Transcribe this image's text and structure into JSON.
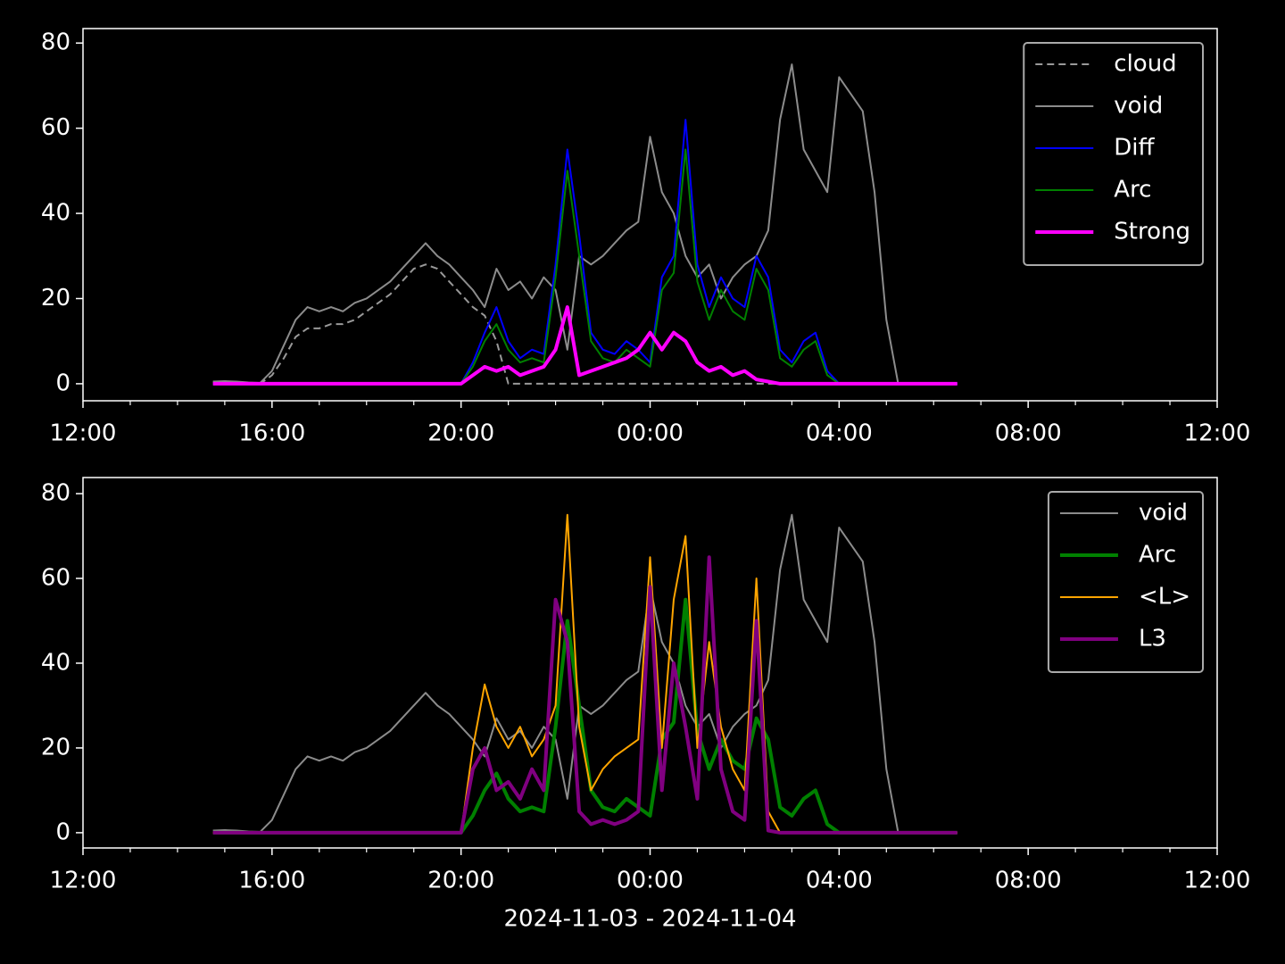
{
  "chart_data": [
    {
      "type": "line",
      "x": [
        2.75,
        3,
        3.25,
        3.5,
        3.75,
        4,
        4.25,
        4.5,
        4.75,
        5,
        5.25,
        5.5,
        5.75,
        6,
        6.25,
        6.5,
        6.75,
        7,
        7.25,
        7.5,
        7.75,
        8,
        8.25,
        8.5,
        8.75,
        9,
        9.25,
        9.5,
        9.75,
        10,
        10.25,
        10.5,
        10.75,
        11,
        11.25,
        11.5,
        11.75,
        12,
        12.25,
        12.5,
        12.75,
        13,
        13.25,
        13.5,
        13.75,
        14,
        14.25,
        14.5,
        14.75,
        15,
        15.25,
        15.5,
        15.75,
        16,
        16.25,
        16.5,
        16.75,
        17,
        17.25,
        17.5,
        17.75,
        18,
        18.25,
        18.5
      ],
      "series": [
        {
          "name": "cloud",
          "color": "#999999",
          "linestyle": "dashed",
          "linewidth": 2,
          "values": [
            0.3,
            0.4,
            0.3,
            0.2,
            0,
            2,
            6,
            11,
            13,
            13,
            14,
            14,
            15,
            17,
            19,
            21,
            24,
            27,
            28,
            27,
            24,
            21,
            18,
            16,
            10,
            0,
            0,
            0,
            0,
            0,
            0,
            0,
            0,
            0,
            0,
            0,
            0,
            0,
            0,
            0,
            0,
            0,
            0,
            0,
            0,
            0,
            0,
            0,
            0,
            0,
            0,
            0,
            0,
            0,
            0,
            0,
            0,
            0,
            0,
            0,
            0,
            0,
            0,
            0
          ]
        },
        {
          "name": "void",
          "color": "#8c8c8c",
          "linestyle": "solid",
          "linewidth": 2,
          "values": [
            0.5,
            0.6,
            0.5,
            0.3,
            0.2,
            3,
            9,
            15,
            18,
            17,
            18,
            17,
            19,
            20,
            22,
            24,
            27,
            30,
            33,
            30,
            28,
            25,
            22,
            18,
            27,
            22,
            24,
            20,
            25,
            22,
            8,
            30,
            28,
            30,
            33,
            36,
            38,
            58,
            45,
            40,
            30,
            25,
            28,
            20,
            25,
            28,
            30,
            36,
            62,
            75,
            55,
            50,
            45,
            72,
            68,
            64,
            45,
            15,
            0,
            0,
            0,
            0,
            0,
            0
          ]
        },
        {
          "name": "Diff",
          "color": "#0000ff",
          "linestyle": "solid",
          "linewidth": 2,
          "values": [
            0,
            0,
            0,
            0,
            0,
            0,
            0,
            0,
            0,
            0,
            0,
            0,
            0,
            0,
            0,
            0,
            0,
            0,
            0,
            0,
            0,
            0,
            5,
            12,
            18,
            10,
            6,
            8,
            7,
            28,
            55,
            35,
            12,
            8,
            7,
            10,
            8,
            5,
            25,
            30,
            62,
            28,
            18,
            25,
            20,
            18,
            30,
            25,
            8,
            5,
            10,
            12,
            3,
            0,
            0,
            0,
            0,
            0,
            0,
            0,
            0,
            0,
            0,
            0
          ]
        },
        {
          "name": "Arc",
          "color": "#008000",
          "linestyle": "solid",
          "linewidth": 2,
          "values": [
            0,
            0,
            0,
            0,
            0,
            0,
            0,
            0,
            0,
            0,
            0,
            0,
            0,
            0,
            0,
            0,
            0,
            0,
            0,
            0,
            0,
            0,
            4,
            10,
            14,
            8,
            5,
            6,
            5,
            25,
            50,
            30,
            10,
            6,
            5,
            8,
            6,
            4,
            22,
            26,
            55,
            24,
            15,
            22,
            17,
            15,
            27,
            22,
            6,
            4,
            8,
            10,
            2,
            0,
            0,
            0,
            0,
            0,
            0,
            0,
            0,
            0,
            0,
            0
          ]
        },
        {
          "name": "Strong",
          "color": "#ff00ff",
          "linestyle": "solid",
          "linewidth": 4,
          "values": [
            0,
            0,
            0,
            0,
            0,
            0,
            0,
            0,
            0,
            0,
            0,
            0,
            0,
            0,
            0,
            0,
            0,
            0,
            0,
            0,
            0,
            0,
            2,
            4,
            3,
            4,
            2,
            3,
            4,
            8,
            18,
            2,
            3,
            4,
            5,
            6,
            8,
            12,
            8,
            12,
            10,
            5,
            3,
            4,
            2,
            3,
            1,
            0.5,
            0,
            0,
            0,
            0,
            0,
            0,
            0,
            0,
            0,
            0,
            0,
            0,
            0,
            0,
            0,
            0
          ]
        }
      ],
      "xlim": [
        0,
        24
      ],
      "xticks": [
        {
          "value": 0,
          "label": "12:00"
        },
        {
          "value": 4,
          "label": "16:00"
        },
        {
          "value": 8,
          "label": "20:00"
        },
        {
          "value": 12,
          "label": "00:00"
        },
        {
          "value": 16,
          "label": "04:00"
        },
        {
          "value": 20,
          "label": "08:00"
        },
        {
          "value": 24,
          "label": "12:00"
        }
      ],
      "xminorticks": [
        1,
        2,
        3,
        5,
        6,
        7,
        9,
        10,
        11,
        13,
        14,
        15,
        17,
        18,
        19,
        21,
        22,
        23
      ],
      "ylim": [
        -4,
        83.4
      ],
      "yticks": [
        0,
        20,
        40,
        60,
        80
      ],
      "legend": "upper right"
    },
    {
      "type": "line",
      "xlabel": "2024-11-03 - 2024-11-04",
      "x": [
        2.75,
        3,
        3.25,
        3.5,
        3.75,
        4,
        4.25,
        4.5,
        4.75,
        5,
        5.25,
        5.5,
        5.75,
        6,
        6.25,
        6.5,
        6.75,
        7,
        7.25,
        7.5,
        7.75,
        8,
        8.25,
        8.5,
        8.75,
        9,
        9.25,
        9.5,
        9.75,
        10,
        10.25,
        10.5,
        10.75,
        11,
        11.25,
        11.5,
        11.75,
        12,
        12.25,
        12.5,
        12.75,
        13,
        13.25,
        13.5,
        13.75,
        14,
        14.25,
        14.5,
        14.75,
        15,
        15.25,
        15.5,
        15.75,
        16,
        16.25,
        16.5,
        16.75,
        17,
        17.25,
        17.5,
        17.75,
        18,
        18.25,
        18.5
      ],
      "series": [
        {
          "name": "void",
          "color": "#8c8c8c",
          "linestyle": "solid",
          "linewidth": 2,
          "values": [
            0.5,
            0.6,
            0.5,
            0.3,
            0.2,
            3,
            9,
            15,
            18,
            17,
            18,
            17,
            19,
            20,
            22,
            24,
            27,
            30,
            33,
            30,
            28,
            25,
            22,
            18,
            27,
            22,
            24,
            20,
            25,
            22,
            8,
            30,
            28,
            30,
            33,
            36,
            38,
            58,
            45,
            40,
            30,
            25,
            28,
            20,
            25,
            28,
            30,
            36,
            62,
            75,
            55,
            50,
            45,
            72,
            68,
            64,
            45,
            15,
            0,
            0,
            0,
            0,
            0,
            0
          ]
        },
        {
          "name": "Arc",
          "color": "#008000",
          "linestyle": "solid",
          "linewidth": 4,
          "values": [
            0,
            0,
            0,
            0,
            0,
            0,
            0,
            0,
            0,
            0,
            0,
            0,
            0,
            0,
            0,
            0,
            0,
            0,
            0,
            0,
            0,
            0,
            4,
            10,
            14,
            8,
            5,
            6,
            5,
            25,
            50,
            30,
            10,
            6,
            5,
            8,
            6,
            4,
            22,
            26,
            55,
            24,
            15,
            22,
            17,
            15,
            27,
            22,
            6,
            4,
            8,
            10,
            2,
            0,
            0,
            0,
            0,
            0,
            0,
            0,
            0,
            0,
            0,
            0
          ]
        },
        {
          "name": "<L>",
          "color": "#ffa500",
          "linestyle": "solid",
          "linewidth": 2,
          "values": [
            0,
            0,
            0,
            0,
            0,
            0,
            0,
            0,
            0,
            0,
            0,
            0,
            0,
            0,
            0,
            0,
            0,
            0,
            0,
            0,
            0,
            0,
            20,
            35,
            25,
            20,
            25,
            18,
            22,
            30,
            75,
            25,
            10,
            15,
            18,
            20,
            22,
            65,
            20,
            55,
            70,
            20,
            45,
            25,
            15,
            10,
            60,
            5,
            0,
            0,
            0,
            0,
            0,
            0,
            0,
            0,
            0,
            0,
            0,
            0,
            0,
            0,
            0,
            0
          ]
        },
        {
          "name": "L3",
          "color": "#800080",
          "linestyle": "solid",
          "linewidth": 4,
          "values": [
            0,
            0,
            0,
            0,
            0,
            0,
            0,
            0,
            0,
            0,
            0,
            0,
            0,
            0,
            0,
            0,
            0,
            0,
            0,
            0,
            0,
            0,
            15,
            20,
            10,
            12,
            8,
            15,
            10,
            55,
            45,
            5,
            2,
            3,
            2,
            3,
            5,
            58,
            10,
            40,
            25,
            8,
            65,
            15,
            5,
            3,
            50,
            0.5,
            0,
            0,
            0,
            0,
            0,
            0,
            0,
            0,
            0,
            0,
            0,
            0,
            0,
            0,
            0,
            0
          ]
        }
      ],
      "xlim": [
        0,
        24
      ],
      "xticks": [
        {
          "value": 0,
          "label": "12:00"
        },
        {
          "value": 4,
          "label": "16:00"
        },
        {
          "value": 8,
          "label": "20:00"
        },
        {
          "value": 12,
          "label": "00:00"
        },
        {
          "value": 16,
          "label": "04:00"
        },
        {
          "value": 20,
          "label": "08:00"
        },
        {
          "value": 24,
          "label": "12:00"
        }
      ],
      "xminorticks": [
        1,
        2,
        3,
        5,
        6,
        7,
        9,
        10,
        11,
        13,
        14,
        15,
        17,
        18,
        19,
        21,
        22,
        23
      ],
      "ylim": [
        -3.6,
        83.8
      ],
      "yticks": [
        0,
        20,
        40,
        60,
        80
      ],
      "legend": "upper right"
    }
  ]
}
